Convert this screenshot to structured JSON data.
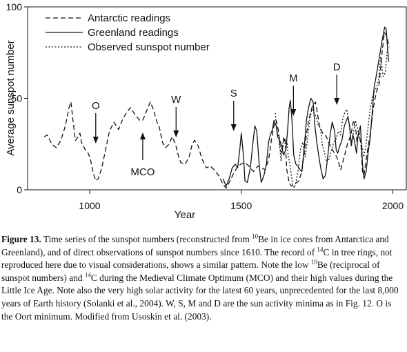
{
  "chart_data": {
    "type": "line",
    "xlabel": "Year",
    "ylabel": "Average sunspot number",
    "xlim": [
      850,
      2020
    ],
    "ylim": [
      0,
      100
    ],
    "x_ticks": [
      1000,
      1500,
      2000
    ],
    "y_ticks": [
      0,
      50,
      100
    ],
    "grid": false,
    "legend_position": "top-left",
    "series": [
      {
        "name": "Antarctic readings",
        "style": "dashed",
        "points": [
          [
            850,
            29
          ],
          [
            860,
            30
          ],
          [
            875,
            25
          ],
          [
            890,
            23
          ],
          [
            905,
            27
          ],
          [
            920,
            35
          ],
          [
            932,
            45
          ],
          [
            938,
            48
          ],
          [
            945,
            38
          ],
          [
            953,
            27
          ],
          [
            962,
            29
          ],
          [
            968,
            31
          ],
          [
            973,
            26
          ],
          [
            985,
            22
          ],
          [
            995,
            20
          ],
          [
            1002,
            17
          ],
          [
            1012,
            9
          ],
          [
            1020,
            5
          ],
          [
            1028,
            6
          ],
          [
            1040,
            12
          ],
          [
            1055,
            24
          ],
          [
            1065,
            32
          ],
          [
            1080,
            37
          ],
          [
            1095,
            33
          ],
          [
            1110,
            39
          ],
          [
            1125,
            43
          ],
          [
            1135,
            45
          ],
          [
            1150,
            41
          ],
          [
            1165,
            38
          ],
          [
            1175,
            38
          ],
          [
            1190,
            44
          ],
          [
            1200,
            48
          ],
          [
            1210,
            44
          ],
          [
            1222,
            37
          ],
          [
            1230,
            34
          ],
          [
            1240,
            26
          ],
          [
            1250,
            23
          ],
          [
            1262,
            25
          ],
          [
            1272,
            29
          ],
          [
            1283,
            25
          ],
          [
            1292,
            19
          ],
          [
            1300,
            15
          ],
          [
            1315,
            14
          ],
          [
            1328,
            18
          ],
          [
            1338,
            25
          ],
          [
            1346,
            27
          ],
          [
            1358,
            24
          ],
          [
            1370,
            17
          ],
          [
            1385,
            12
          ],
          [
            1398,
            13
          ],
          [
            1410,
            11
          ],
          [
            1425,
            8
          ],
          [
            1440,
            3
          ],
          [
            1450,
            1
          ],
          [
            1460,
            4
          ],
          [
            1472,
            8
          ],
          [
            1485,
            12
          ],
          [
            1498,
            14
          ],
          [
            1512,
            15
          ],
          [
            1525,
            13
          ],
          [
            1540,
            10
          ],
          [
            1555,
            13
          ],
          [
            1566,
            12
          ],
          [
            1578,
            11
          ],
          [
            1590,
            16
          ],
          [
            1600,
            28
          ],
          [
            1608,
            35
          ],
          [
            1615,
            38
          ],
          [
            1622,
            33
          ],
          [
            1630,
            21
          ],
          [
            1635,
            20
          ],
          [
            1640,
            29
          ],
          [
            1645,
            27
          ],
          [
            1650,
            11
          ],
          [
            1658,
            4
          ],
          [
            1665,
            2
          ],
          [
            1675,
            3
          ],
          [
            1690,
            5
          ],
          [
            1700,
            10
          ],
          [
            1715,
            30
          ],
          [
            1722,
            38
          ],
          [
            1735,
            46
          ],
          [
            1745,
            48
          ],
          [
            1758,
            35
          ],
          [
            1768,
            31
          ],
          [
            1778,
            30
          ],
          [
            1788,
            26
          ],
          [
            1800,
            22
          ],
          [
            1815,
            18
          ],
          [
            1828,
            11
          ],
          [
            1838,
            17
          ],
          [
            1850,
            25
          ],
          [
            1862,
            30
          ],
          [
            1870,
            38
          ],
          [
            1877,
            34
          ],
          [
            1882,
            26
          ],
          [
            1888,
            32
          ],
          [
            1895,
            24
          ],
          [
            1900,
            10
          ],
          [
            1905,
            8
          ],
          [
            1915,
            20
          ],
          [
            1925,
            30
          ],
          [
            1935,
            44
          ],
          [
            1945,
            53
          ],
          [
            1955,
            58
          ],
          [
            1965,
            76
          ],
          [
            1972,
            86
          ],
          [
            1980,
            84
          ],
          [
            1988,
            78
          ]
        ]
      },
      {
        "name": "Greenland readings",
        "style": "solid",
        "points": [
          [
            1440,
            6
          ],
          [
            1450,
            2
          ],
          [
            1460,
            6
          ],
          [
            1470,
            12
          ],
          [
            1480,
            14
          ],
          [
            1488,
            12
          ],
          [
            1495,
            22
          ],
          [
            1500,
            31
          ],
          [
            1508,
            17
          ],
          [
            1512,
            5
          ],
          [
            1520,
            4
          ],
          [
            1530,
            12
          ],
          [
            1540,
            28
          ],
          [
            1545,
            35
          ],
          [
            1551,
            32
          ],
          [
            1560,
            12
          ],
          [
            1566,
            4
          ],
          [
            1575,
            8
          ],
          [
            1583,
            14
          ],
          [
            1590,
            26
          ],
          [
            1596,
            30
          ],
          [
            1603,
            33
          ],
          [
            1608,
            38
          ],
          [
            1615,
            35
          ],
          [
            1620,
            29
          ],
          [
            1627,
            27
          ],
          [
            1633,
            24
          ],
          [
            1640,
            19
          ],
          [
            1647,
            22
          ],
          [
            1652,
            31
          ],
          [
            1658,
            45
          ],
          [
            1662,
            49
          ],
          [
            1667,
            39
          ],
          [
            1673,
            19
          ],
          [
            1680,
            14
          ],
          [
            1687,
            13
          ],
          [
            1693,
            11
          ],
          [
            1700,
            10
          ],
          [
            1708,
            24
          ],
          [
            1715,
            38
          ],
          [
            1722,
            45
          ],
          [
            1730,
            50
          ],
          [
            1737,
            48
          ],
          [
            1743,
            35
          ],
          [
            1750,
            25
          ],
          [
            1756,
            18
          ],
          [
            1762,
            12
          ],
          [
            1770,
            6
          ],
          [
            1778,
            8
          ],
          [
            1785,
            18
          ],
          [
            1793,
            30
          ],
          [
            1800,
            37
          ],
          [
            1808,
            32
          ],
          [
            1813,
            22
          ],
          [
            1818,
            20
          ],
          [
            1825,
            24
          ],
          [
            1832,
            27
          ],
          [
            1840,
            35
          ],
          [
            1847,
            38
          ],
          [
            1852,
            40
          ],
          [
            1858,
            34
          ],
          [
            1863,
            24
          ],
          [
            1868,
            30
          ],
          [
            1873,
            27
          ],
          [
            1880,
            20
          ],
          [
            1885,
            30
          ],
          [
            1893,
            35
          ],
          [
            1900,
            14
          ],
          [
            1905,
            6
          ],
          [
            1912,
            10
          ],
          [
            1918,
            20
          ],
          [
            1925,
            28
          ],
          [
            1932,
            42
          ],
          [
            1938,
            56
          ],
          [
            1945,
            62
          ],
          [
            1955,
            72
          ],
          [
            1965,
            82
          ],
          [
            1973,
            89
          ],
          [
            1978,
            88
          ],
          [
            1986,
            70
          ]
        ]
      },
      {
        "name": "Observed sunspot number",
        "style": "dotted",
        "points": [
          [
            1612,
            42
          ],
          [
            1618,
            33
          ],
          [
            1625,
            27
          ],
          [
            1631,
            16
          ],
          [
            1636,
            25
          ],
          [
            1642,
            28
          ],
          [
            1647,
            22
          ],
          [
            1651,
            26
          ],
          [
            1655,
            18
          ],
          [
            1660,
            15
          ],
          [
            1665,
            8
          ],
          [
            1670,
            3
          ],
          [
            1675,
            1
          ],
          [
            1680,
            4
          ],
          [
            1688,
            11
          ],
          [
            1695,
            22
          ],
          [
            1703,
            26
          ],
          [
            1711,
            18
          ],
          [
            1719,
            28
          ],
          [
            1726,
            38
          ],
          [
            1733,
            45
          ],
          [
            1740,
            42
          ],
          [
            1747,
            40
          ],
          [
            1754,
            35
          ],
          [
            1761,
            34
          ],
          [
            1768,
            24
          ],
          [
            1775,
            20
          ],
          [
            1782,
            15
          ],
          [
            1790,
            17
          ],
          [
            1798,
            22
          ],
          [
            1805,
            26
          ],
          [
            1813,
            28
          ],
          [
            1820,
            32
          ],
          [
            1827,
            30
          ],
          [
            1834,
            38
          ],
          [
            1841,
            42
          ],
          [
            1848,
            44
          ],
          [
            1855,
            37
          ],
          [
            1862,
            26
          ],
          [
            1869,
            30
          ],
          [
            1876,
            38
          ],
          [
            1883,
            34
          ],
          [
            1890,
            28
          ],
          [
            1897,
            25
          ],
          [
            1904,
            18
          ],
          [
            1911,
            24
          ],
          [
            1918,
            34
          ],
          [
            1925,
            44
          ],
          [
            1932,
            50
          ],
          [
            1939,
            54
          ],
          [
            1946,
            56
          ],
          [
            1953,
            60
          ],
          [
            1960,
            73
          ],
          [
            1968,
            62
          ],
          [
            1975,
            64
          ],
          [
            1982,
            77
          ]
        ]
      }
    ],
    "annotations": [
      {
        "label": "O",
        "x": 1020,
        "arrow": "down"
      },
      {
        "label": "MCO",
        "x": 1175,
        "arrow": "up"
      },
      {
        "label": "W",
        "x": 1285,
        "arrow": "down"
      },
      {
        "label": "S",
        "x": 1475,
        "arrow": "down"
      },
      {
        "label": "M",
        "x": 1672,
        "arrow": "down"
      },
      {
        "label": "D",
        "x": 1815,
        "arrow": "down"
      }
    ]
  },
  "caption": {
    "figure_label": "Figure 13.",
    "seg1": " Time series of the sunspot numbers (reconstructed from ",
    "sup1": "10",
    "seg2": "Be in ice cores from Antarctica and Greenland), and of direct observations of sunspot numbers since 1610. The record of ",
    "sup2": "14",
    "seg3": "C in tree rings, not reproduced here due to visual considerations, shows a similar pattern. Note the low ",
    "sup3": "10",
    "seg4": "Be (reciprocal of sunspot numbers) and ",
    "sup4": "14",
    "seg5": "C during the Medieval Climate Optimum (MCO) and their high values during the Little Ice Age. Note also the very high solar activity for the latest 60 years, unprecedented for the last 8,000 years of Earth history (Solanki et al., 2004). W, S, M and D are the sun activity minima as in Fig. 12. O is the Oort minimum. Modified from Usoskin et al. (2003)."
  }
}
